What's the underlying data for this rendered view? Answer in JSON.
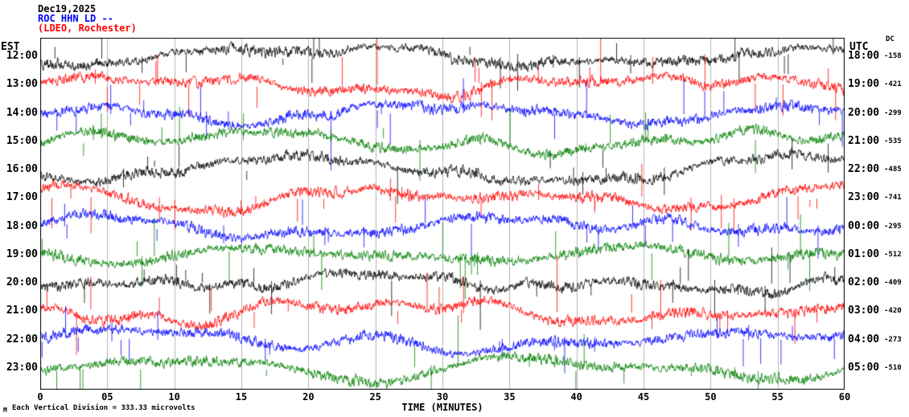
{
  "header": {
    "date": "Dec19,2025",
    "station": "ROC HHN LD --",
    "location": "(LDEO, Rochester)"
  },
  "axes": {
    "left_label": "EST",
    "right_label": "UTC",
    "dc_label": "DC",
    "x_label": "TIME (MINUTES)",
    "x_ticks": [
      "0",
      "05",
      "10",
      "15",
      "20",
      "25",
      "30",
      "35",
      "40",
      "45",
      "50",
      "55",
      "60"
    ]
  },
  "footer": {
    "scale_note": "Each Vertical Division =  333.33 microvolts",
    "corner_glyph": "M"
  },
  "chart_data": {
    "type": "line",
    "title": "ROC HHN LD -- (LDEO, Rochester) Dec19,2025 helicorder seismogram",
    "xlabel": "TIME (MINUTES)",
    "x_range_minutes": [
      0,
      60
    ],
    "x_tick_interval_minutes": 5,
    "minutes_per_row": 60,
    "vertical_division_microvolts": 333.33,
    "grid": true,
    "trace_color_cycle": [
      "#000000",
      "#ff0000",
      "#0000ff",
      "#008000"
    ],
    "rows": [
      {
        "est": "12:00",
        "utc": "18:00",
        "dc": "-158",
        "color": "#000000"
      },
      {
        "est": "13:00",
        "utc": "19:00",
        "dc": "-421",
        "color": "#ff0000"
      },
      {
        "est": "14:00",
        "utc": "20:00",
        "dc": "-299",
        "color": "#0000ff"
      },
      {
        "est": "15:00",
        "utc": "21:00",
        "dc": "-535",
        "color": "#008000"
      },
      {
        "est": "16:00",
        "utc": "22:00",
        "dc": "-485",
        "color": "#000000"
      },
      {
        "est": "17:00",
        "utc": "23:00",
        "dc": "-741",
        "color": "#ff0000"
      },
      {
        "est": "18:00",
        "utc": "00:00",
        "dc": "-295",
        "color": "#0000ff"
      },
      {
        "est": "19:00",
        "utc": "01:00",
        "dc": "-512",
        "color": "#008000"
      },
      {
        "est": "20:00",
        "utc": "02:00",
        "dc": "-409",
        "color": "#000000"
      },
      {
        "est": "21:00",
        "utc": "03:00",
        "dc": "-420",
        "color": "#ff0000"
      },
      {
        "est": "22:00",
        "utc": "04:00",
        "dc": "-273",
        "color": "#0000ff"
      },
      {
        "est": "23:00",
        "utc": "05:00",
        "dc": "-510",
        "color": "#008000"
      }
    ]
  }
}
